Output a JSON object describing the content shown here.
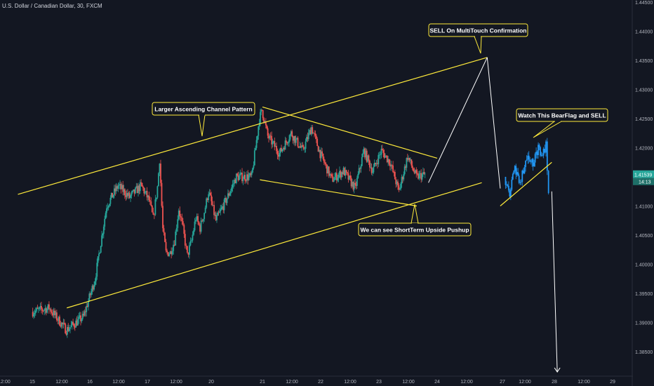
{
  "header": {
    "title": "U.S. Dollar / Canadian Dollar, 30, FXCM"
  },
  "colors": {
    "background": "#131722",
    "up": "#26a69a",
    "down": "#ef5350",
    "trendline": "#ffeb3b",
    "projection": "#ffffff",
    "flag": "#2196f3",
    "price_label": "#26a69a",
    "grid_text": "#b2b5be"
  },
  "price_axis": {
    "ticks": [
      "1.44500",
      "1.44000",
      "1.43500",
      "1.43000",
      "1.42500",
      "1.42000",
      "1.41500",
      "1.41000",
      "1.40500",
      "1.40000",
      "1.39500",
      "1.39000",
      "1.38500"
    ],
    "current_price": "1.41539",
    "countdown": "14:13"
  },
  "time_axis": {
    "ticks": [
      "12:00",
      "15",
      "12:00",
      "16",
      "12:00",
      "17",
      "12:00",
      "20",
      "21",
      "12:00",
      "22",
      "12:00",
      "23",
      "12:00",
      "24",
      "12:00",
      "27",
      "12:00",
      "28",
      "12:00",
      "29"
    ]
  },
  "annotations": [
    {
      "id": "channel",
      "text": "Larger Ascending Channel Pattern"
    },
    {
      "id": "sell-multitouch",
      "text": "SELL On MultiTouch Confirmation"
    },
    {
      "id": "bearflag",
      "text": "Watch This BearFlag and SELL"
    },
    {
      "id": "pushup",
      "text": "We can see ShortTerm Upside Pushup"
    }
  ],
  "chart_data": {
    "type": "candlestick",
    "symbol": "U.S. Dollar / Canadian Dollar",
    "timeframe": "30",
    "source": "FXCM",
    "ylim": [
      1.3815,
      1.4455
    ],
    "last_price": 1.41539,
    "price_path": [
      [
        15.0,
        1.3918
      ],
      [
        15.3,
        1.3925
      ],
      [
        15.6,
        1.3887
      ],
      [
        15.9,
        1.391
      ],
      [
        16.1,
        1.3975
      ],
      [
        16.3,
        1.41
      ],
      [
        16.5,
        1.4135
      ],
      [
        16.7,
        1.4115
      ],
      [
        16.9,
        1.4135
      ],
      [
        17.1,
        1.411
      ],
      [
        17.3,
        1.4078
      ],
      [
        17.5,
        1.4133
      ],
      [
        17.6,
        1.418
      ],
      [
        17.75,
        1.406
      ],
      [
        17.9,
        1.402
      ],
      [
        18.1,
        1.402
      ],
      [
        18.3,
        1.404
      ],
      [
        18.5,
        1.4095
      ],
      [
        18.7,
        1.406
      ],
      [
        18.9,
        1.4015
      ],
      [
        19.1,
        1.404
      ],
      [
        19.3,
        1.408
      ],
      [
        19.5,
        1.4062
      ],
      [
        19.7,
        1.409
      ],
      [
        19.9,
        1.4125
      ],
      [
        20.1,
        1.4075
      ],
      [
        20.3,
        1.411
      ],
      [
        20.5,
        1.415
      ],
      [
        20.8,
        1.415
      ],
      [
        20.95,
        1.425
      ],
      [
        21.0,
        1.4265
      ],
      [
        21.1,
        1.422
      ],
      [
        21.3,
        1.419
      ],
      [
        21.5,
        1.4225
      ],
      [
        21.7,
        1.4195
      ],
      [
        21.85,
        1.4235
      ],
      [
        22.0,
        1.419
      ],
      [
        22.2,
        1.4145
      ],
      [
        22.4,
        1.416
      ],
      [
        22.6,
        1.413
      ],
      [
        22.75,
        1.4195
      ],
      [
        22.9,
        1.416
      ],
      [
        23.05,
        1.4195
      ],
      [
        23.2,
        1.4175
      ],
      [
        23.35,
        1.4125
      ],
      [
        23.5,
        1.4185
      ],
      [
        23.65,
        1.415
      ],
      [
        23.8,
        1.4154
      ]
    ],
    "bearflag_path": [
      [
        27.05,
        1.415
      ],
      [
        27.15,
        1.412
      ],
      [
        27.25,
        1.4165
      ],
      [
        27.35,
        1.414
      ],
      [
        27.5,
        1.4185
      ],
      [
        27.6,
        1.417
      ],
      [
        27.7,
        1.42
      ],
      [
        27.78,
        1.4185
      ],
      [
        27.85,
        1.4205
      ],
      [
        27.9,
        1.413
      ]
    ],
    "trendlines": [
      {
        "name": "channel-upper",
        "points": [
          [
            14.8,
            1.412
          ],
          [
            26.3,
            1.4355
          ]
        ]
      },
      {
        "name": "channel-lower",
        "points": [
          [
            15.6,
            1.3925
          ],
          [
            26.05,
            1.414
          ]
        ]
      },
      {
        "name": "flag-upper",
        "points": [
          [
            21.0,
            1.427
          ],
          [
            24.0,
            1.4182
          ]
        ]
      },
      {
        "name": "flag-lower",
        "points": [
          [
            20.95,
            1.4145
          ],
          [
            23.65,
            1.41
          ]
        ]
      },
      {
        "name": "bearflag-support",
        "points": [
          [
            26.9,
            1.41
          ],
          [
            27.95,
            1.4175
          ]
        ]
      }
    ],
    "projections": [
      {
        "name": "up-move",
        "points": [
          [
            23.85,
            1.414
          ],
          [
            26.3,
            1.4355
          ]
        ]
      },
      {
        "name": "down-move",
        "points": [
          [
            26.3,
            1.4355
          ],
          [
            26.9,
            1.413
          ]
        ]
      },
      {
        "name": "breakdown",
        "points": [
          [
            27.95,
            1.4125
          ],
          [
            28.05,
            1.3815
          ]
        ]
      }
    ]
  }
}
